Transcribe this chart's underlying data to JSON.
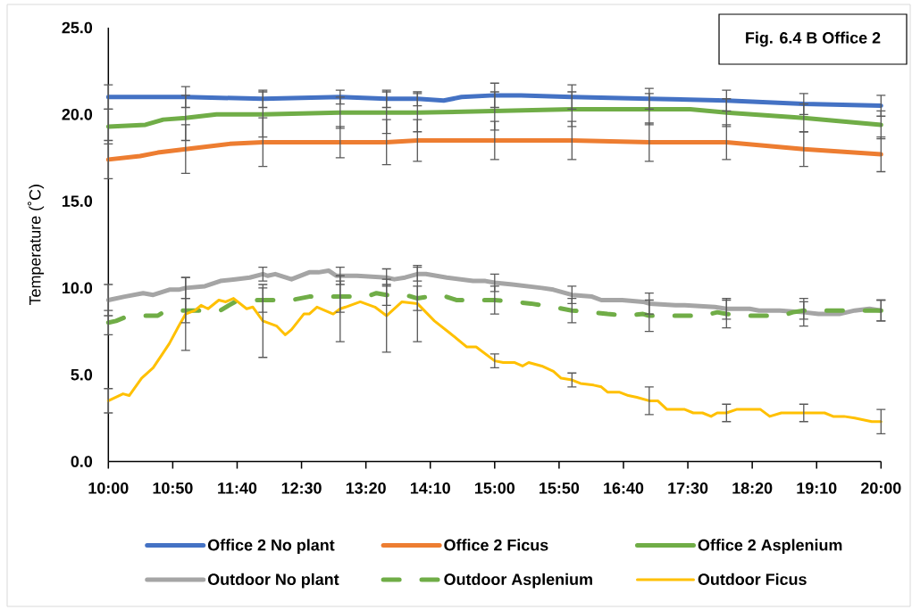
{
  "chart_data": {
    "type": "line",
    "title": "Fig. 6.4 B Office 2",
    "ylabel": "Temperature (˚C)",
    "xlim": [
      10,
      20
    ],
    "ylim": [
      0,
      25
    ],
    "xticks": [
      {
        "value": 10,
        "label": "10:00"
      },
      {
        "value": 10.8333,
        "label": "10:50"
      },
      {
        "value": 11.6667,
        "label": "11:40"
      },
      {
        "value": 12.5,
        "label": "12:30"
      },
      {
        "value": 13.3333,
        "label": "13:20"
      },
      {
        "value": 14.1667,
        "label": "14:10"
      },
      {
        "value": 15,
        "label": "15:00"
      },
      {
        "value": 15.8333,
        "label": "15:50"
      },
      {
        "value": 16.6667,
        "label": "16:40"
      },
      {
        "value": 17.5,
        "label": "17:30"
      },
      {
        "value": 18.3333,
        "label": "18:20"
      },
      {
        "value": 19.1667,
        "label": "19:10"
      },
      {
        "value": 20,
        "label": "20:00"
      }
    ],
    "yticks": [
      {
        "value": 0,
        "label": "0.0"
      },
      {
        "value": 5,
        "label": "5.0"
      },
      {
        "value": 10,
        "label": "10.0"
      },
      {
        "value": 15,
        "label": "15.0"
      },
      {
        "value": 20,
        "label": "20.0"
      },
      {
        "value": 25,
        "label": "25.0"
      }
    ],
    "legend": "bottom",
    "series": [
      {
        "name": "Office 2 No plant",
        "color": "#4472c4",
        "x": [
          10,
          11,
          12,
          13,
          13.6,
          14,
          14.34,
          14.57,
          15,
          15.34,
          16,
          17,
          18,
          19,
          20
        ],
        "values": [
          21.0,
          21.0,
          20.9,
          21.0,
          20.9,
          20.9,
          20.8,
          21.0,
          21.1,
          21.1,
          21.0,
          20.9,
          20.8,
          20.6,
          20.5
        ],
        "errors": [
          0.7,
          0.6,
          0.5,
          0.4,
          0.5,
          0.4,
          null,
          null,
          0.7,
          null,
          0.7,
          0.6,
          0.6,
          0.6,
          0.6
        ]
      },
      {
        "name": "Office 2 Ficus",
        "color": "#ed7d31",
        "x": [
          10,
          10.41,
          10.64,
          11,
          11.57,
          12,
          13,
          13.6,
          14,
          15,
          16,
          17,
          17.73,
          18,
          19,
          20
        ],
        "values": [
          17.4,
          17.6,
          17.8,
          18.0,
          18.3,
          18.4,
          18.4,
          18.4,
          18.5,
          18.5,
          18.5,
          18.4,
          18.4,
          18.4,
          18.0,
          17.7
        ],
        "errors": [
          1.1,
          null,
          null,
          1.4,
          null,
          1.4,
          0.9,
          1.3,
          1.2,
          1.1,
          1.1,
          1.1,
          null,
          1.0,
          1.0,
          1.0
        ]
      },
      {
        "name": "Office 2 Asplenium",
        "color": "#70ad47",
        "x": [
          10,
          10.48,
          10.71,
          11,
          11.4,
          12,
          13,
          13.6,
          14,
          15,
          16,
          17,
          17.53,
          18,
          19,
          20
        ],
        "values": [
          19.3,
          19.4,
          19.7,
          19.8,
          20.0,
          20.0,
          20.1,
          20.1,
          20.1,
          20.2,
          20.3,
          20.3,
          20.3,
          20.1,
          19.8,
          19.4
        ],
        "errors": [
          1.0,
          null,
          null,
          1.3,
          null,
          1.3,
          0.9,
          1.2,
          1.1,
          1.1,
          1.0,
          0.9,
          null,
          0.8,
          0.8,
          0.8
        ]
      },
      {
        "name": "Outdoor No plant",
        "color": "#a5a5a5",
        "x": [
          10,
          10.21,
          10.45,
          10.58,
          10.79,
          10.91,
          11,
          11.25,
          11.45,
          11.64,
          11.83,
          12,
          12.06,
          12.16,
          12.37,
          12.6,
          12.72,
          12.85,
          12.95,
          13,
          13.22,
          13.6,
          13.7,
          13.84,
          14,
          14.11,
          14.38,
          14.72,
          14.88,
          15,
          15.23,
          15.61,
          15.76,
          16,
          16.26,
          16.38,
          16.65,
          16.92,
          17,
          17.34,
          17.46,
          17.85,
          18,
          18.3,
          18.42,
          18.69,
          19,
          19.19,
          19.46,
          19.66,
          19.85,
          20
        ],
        "values": [
          9.3,
          9.5,
          9.7,
          9.6,
          9.9,
          9.9,
          10.0,
          10.1,
          10.4,
          10.5,
          10.6,
          10.8,
          10.7,
          10.8,
          10.5,
          10.9,
          10.9,
          11.0,
          10.7,
          10.7,
          10.7,
          10.6,
          10.5,
          10.6,
          10.8,
          10.8,
          10.6,
          10.4,
          10.4,
          10.3,
          10.2,
          10.0,
          9.9,
          9.6,
          9.5,
          9.3,
          9.3,
          9.2,
          9.1,
          9.0,
          9.0,
          8.9,
          8.8,
          8.8,
          8.7,
          8.7,
          8.6,
          8.5,
          8.5,
          8.7,
          8.8,
          8.7
        ],
        "errors": [
          0.9,
          null,
          null,
          null,
          null,
          null,
          0.6,
          null,
          null,
          null,
          null,
          0.4,
          null,
          null,
          null,
          null,
          null,
          null,
          null,
          0.5,
          null,
          0.5,
          null,
          null,
          0.4,
          null,
          null,
          null,
          null,
          0.5,
          null,
          null,
          null,
          0.5,
          null,
          null,
          null,
          null,
          0.6,
          null,
          null,
          null,
          0.6,
          null,
          null,
          null,
          0.8,
          null,
          null,
          null,
          null,
          0.6
        ]
      },
      {
        "name": "Outdoor Asplenium",
        "color": "#70ad47",
        "line_style": "dashed",
        "x": [
          10,
          10.1,
          10.21,
          10.48,
          10.64,
          10.71,
          10.95,
          11,
          11.45,
          11.56,
          11.64,
          11.91,
          12,
          12.37,
          12.6,
          13,
          13.34,
          13.47,
          13.6,
          13.84,
          14,
          14.3,
          14.51,
          15,
          15.26,
          15.47,
          15.76,
          16,
          16.26,
          16.46,
          16.71,
          16.92,
          17,
          17.23,
          17.69,
          17.88,
          18,
          18.3,
          18.71,
          18.86,
          19,
          19.35,
          19.88,
          20
        ],
        "values": [
          8.0,
          8.1,
          8.3,
          8.4,
          8.4,
          8.6,
          8.7,
          8.7,
          8.7,
          9.0,
          9.2,
          9.3,
          9.3,
          9.3,
          9.5,
          9.5,
          9.5,
          9.7,
          9.6,
          9.6,
          9.4,
          9.6,
          9.3,
          9.3,
          9.2,
          9.1,
          8.9,
          8.7,
          8.6,
          8.5,
          8.4,
          8.5,
          8.4,
          8.4,
          8.4,
          8.6,
          8.5,
          8.4,
          8.4,
          8.6,
          8.7,
          8.7,
          8.7,
          8.7
        ],
        "errors": [
          0.7,
          null,
          null,
          null,
          null,
          null,
          null,
          0.7,
          null,
          null,
          null,
          null,
          0.7,
          null,
          null,
          0.9,
          null,
          null,
          0.6,
          null,
          0.7,
          null,
          null,
          0.8,
          null,
          null,
          null,
          0.7,
          null,
          null,
          null,
          null,
          0.9,
          null,
          null,
          null,
          0.8,
          null,
          null,
          null,
          0.5,
          null,
          null,
          0.6
        ]
      },
      {
        "name": "Outdoor Ficus",
        "color": "#ffc000",
        "x": [
          10,
          10.19,
          10.27,
          10.43,
          10.58,
          10.7,
          10.79,
          10.91,
          11,
          11.12,
          11.2,
          11.29,
          11.43,
          11.52,
          11.62,
          11.79,
          11.87,
          12,
          12.18,
          12.29,
          12.37,
          12.53,
          12.6,
          12.7,
          12.91,
          13,
          13.07,
          13.26,
          13.45,
          13.6,
          13.8,
          14,
          14.22,
          14.42,
          14.64,
          14.76,
          14.88,
          15,
          15.11,
          15.26,
          15.36,
          15.44,
          15.61,
          15.76,
          15.86,
          16,
          16.11,
          16.28,
          16.38,
          16.46,
          16.61,
          16.73,
          16.84,
          17,
          17.11,
          17.23,
          17.46,
          17.57,
          17.69,
          17.8,
          17.88,
          18,
          18.13,
          18.44,
          18.56,
          18.71,
          19,
          19.27,
          19.38,
          19.52,
          19.66,
          19.88,
          20
        ],
        "values": [
          3.5,
          3.9,
          3.8,
          4.8,
          5.4,
          6.2,
          6.8,
          7.8,
          8.5,
          8.7,
          9.0,
          8.8,
          9.3,
          9.2,
          9.4,
          8.8,
          8.9,
          8.1,
          7.8,
          7.3,
          7.6,
          8.5,
          8.5,
          8.9,
          8.5,
          8.8,
          8.9,
          9.2,
          8.9,
          8.4,
          9.2,
          9.1,
          8.1,
          7.4,
          6.6,
          6.6,
          6.2,
          5.8,
          5.7,
          5.7,
          5.5,
          5.7,
          5.5,
          5.2,
          4.8,
          4.7,
          4.5,
          4.4,
          4.3,
          4.0,
          4.0,
          3.8,
          3.7,
          3.5,
          3.5,
          3.0,
          3.0,
          2.8,
          2.8,
          2.6,
          2.8,
          2.8,
          3.0,
          3.0,
          2.6,
          2.8,
          2.8,
          2.8,
          2.6,
          2.6,
          2.5,
          2.3,
          2.3
        ],
        "errors": [
          0.7,
          null,
          null,
          null,
          null,
          null,
          null,
          null,
          2.1,
          null,
          null,
          null,
          null,
          null,
          null,
          null,
          null,
          2.1,
          null,
          null,
          null,
          null,
          null,
          null,
          null,
          1.9,
          null,
          null,
          null,
          2.1,
          null,
          2.2,
          null,
          null,
          null,
          null,
          null,
          0.4,
          null,
          null,
          null,
          null,
          null,
          null,
          null,
          0.4,
          null,
          null,
          null,
          null,
          null,
          null,
          null,
          0.8,
          null,
          null,
          null,
          null,
          null,
          null,
          null,
          0.5,
          null,
          null,
          null,
          null,
          0.5,
          null,
          null,
          null,
          null,
          null,
          0.7
        ]
      }
    ]
  }
}
